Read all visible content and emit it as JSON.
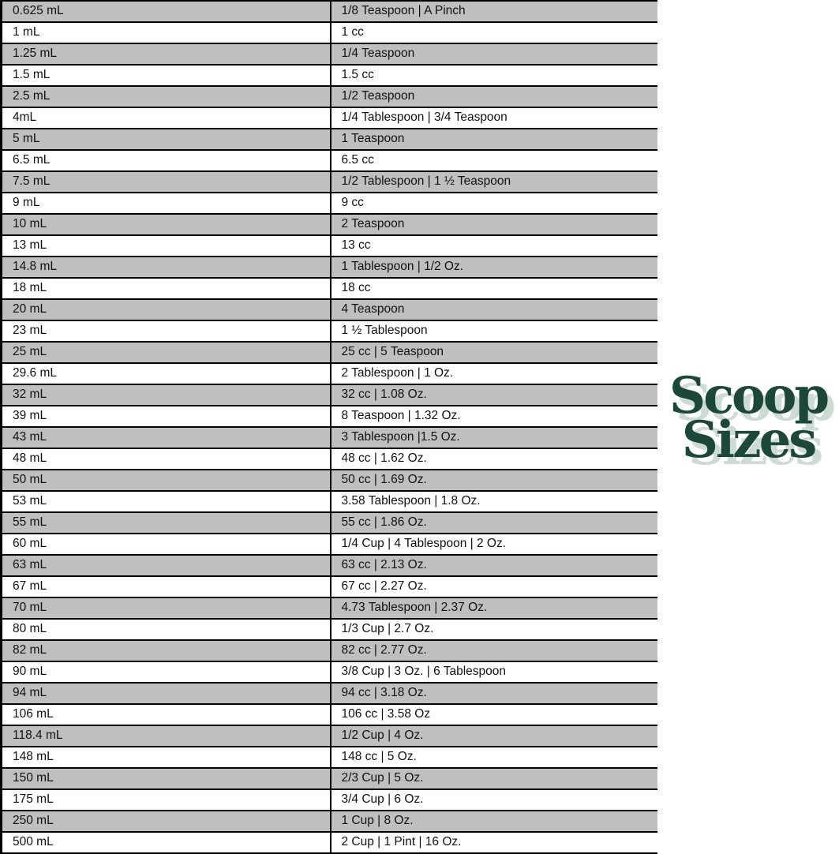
{
  "page": {
    "background": "#ffffff"
  },
  "colors": {
    "row_shaded": "#bfbfbf",
    "row_plain": "#ffffff",
    "border": "#000000",
    "text": "#111111",
    "logo_green": "#1d4736",
    "logo_shadow": "#ccdcd3"
  },
  "logo": {
    "line1": "Scoop",
    "line2": "Sizes"
  },
  "table": {
    "rows": [
      {
        "ml": "0.625 mL",
        "equiv": "1/8 Teaspoon | A Pinch",
        "shaded": true
      },
      {
        "ml": "1 mL",
        "equiv": "1 cc",
        "shaded": false
      },
      {
        "ml": "1.25 mL",
        "equiv": "1/4 Teaspoon",
        "shaded": true
      },
      {
        "ml": "1.5 mL",
        "equiv": "1.5 cc",
        "shaded": false
      },
      {
        "ml": "2.5 mL",
        "equiv": "1/2 Teaspoon",
        "shaded": true
      },
      {
        "ml": "4mL",
        "equiv": "1/4 Tablespoon | 3/4 Teaspoon",
        "shaded": false
      },
      {
        "ml": "5 mL",
        "equiv": "1 Teaspoon",
        "shaded": true
      },
      {
        "ml": "6.5 mL",
        "equiv": "6.5 cc",
        "shaded": false
      },
      {
        "ml": "7.5 mL",
        "equiv": "1/2 Tablespoon | 1 ½ Teaspoon",
        "shaded": true
      },
      {
        "ml": "9 mL",
        "equiv": "9 cc",
        "shaded": false
      },
      {
        "ml": "10 mL",
        "equiv": "2 Teaspoon",
        "shaded": true
      },
      {
        "ml": "13 mL",
        "equiv": "13 cc",
        "shaded": false
      },
      {
        "ml": "14.8 mL",
        "equiv": "1 Tablespoon | 1/2 Oz.",
        "shaded": true
      },
      {
        "ml": "18 mL",
        "equiv": "18 cc",
        "shaded": false
      },
      {
        "ml": "20 mL",
        "equiv": "4 Teaspoon",
        "shaded": true
      },
      {
        "ml": "23 mL",
        "equiv": "1 ½ Tablespoon",
        "shaded": false
      },
      {
        "ml": "25 mL",
        "equiv": "25 cc | 5 Teaspoon",
        "shaded": true
      },
      {
        "ml": "29.6 mL",
        "equiv": "2 Tablespoon | 1 Oz.",
        "shaded": false
      },
      {
        "ml": "32 mL",
        "equiv": "32 cc | 1.08 Oz.",
        "shaded": true
      },
      {
        "ml": "39 mL",
        "equiv": "8 Teaspoon | 1.32 Oz.",
        "shaded": false
      },
      {
        "ml": "43 mL",
        "equiv": "3 Tablespoon |1.5 Oz.",
        "shaded": true
      },
      {
        "ml": "48 mL",
        "equiv": "48 cc | 1.62 Oz.",
        "shaded": false
      },
      {
        "ml": "50 mL",
        "equiv": "50 cc | 1.69 Oz.",
        "shaded": true
      },
      {
        "ml": "53 mL",
        "equiv": "3.58 Tablespoon | 1.8 Oz.",
        "shaded": false
      },
      {
        "ml": "55 mL",
        "equiv": "55 cc | 1.86 Oz.",
        "shaded": true
      },
      {
        "ml": "60 mL",
        "equiv": "1/4 Cup | 4 Tablespoon | 2 Oz.",
        "shaded": false
      },
      {
        "ml": "63 mL",
        "equiv": "63 cc | 2.13 Oz.",
        "shaded": true
      },
      {
        "ml": "67 mL",
        "equiv": "67 cc | 2.27 Oz.",
        "shaded": false
      },
      {
        "ml": "70 mL",
        "equiv": "4.73 Tablespoon | 2.37 Oz.",
        "shaded": true
      },
      {
        "ml": "80 mL",
        "equiv": "1/3 Cup | 2.7 Oz.",
        "shaded": false
      },
      {
        "ml": "82 mL",
        "equiv": "82 cc | 2.77 Oz.",
        "shaded": true
      },
      {
        "ml": "90 mL",
        "equiv": "3/8 Cup | 3 Oz. | 6 Tablespoon",
        "shaded": false
      },
      {
        "ml": "94 mL",
        "equiv": "94 cc | 3.18 Oz.",
        "shaded": true
      },
      {
        "ml": "106 mL",
        "equiv": "106 cc | 3.58 Oz",
        "shaded": false
      },
      {
        "ml": "118.4 mL",
        "equiv": "1/2 Cup | 4 Oz.",
        "shaded": true
      },
      {
        "ml": "148 mL",
        "equiv": "148 cc | 5 Oz.",
        "shaded": false
      },
      {
        "ml": "150 mL",
        "equiv": "2/3 Cup | 5 Oz.",
        "shaded": true
      },
      {
        "ml": "175 mL",
        "equiv": "3/4 Cup | 6 Oz.",
        "shaded": false
      },
      {
        "ml": "250 mL",
        "equiv": "1 Cup | 8 Oz.",
        "shaded": true
      },
      {
        "ml": "500 mL",
        "equiv": "2 Cup | 1 Pint | 16 Oz.",
        "shaded": false
      }
    ]
  }
}
